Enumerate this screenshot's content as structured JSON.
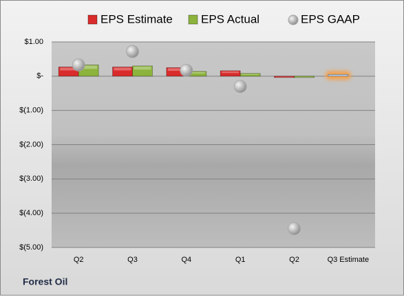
{
  "chart_data": {
    "type": "bar",
    "categories": [
      "Q2",
      "Q3",
      "Q4",
      "Q1",
      "Q2",
      "Q3 Estimate"
    ],
    "series": [
      {
        "name": "EPS Estimate",
        "color": "#d92b2b",
        "colors": [
          "#d92b2b",
          "#d92b2b",
          "#d92b2b",
          "#d92b2b",
          "#d92b2b",
          "#a9c9ec"
        ],
        "values": [
          0.27,
          0.27,
          0.25,
          0.16,
          -0.02,
          0.05
        ]
      },
      {
        "name": "EPS Actual",
        "color": "#8cb33c",
        "values": [
          0.33,
          0.3,
          0.14,
          0.08,
          -0.03,
          null
        ]
      },
      {
        "name": "EPS GAAP",
        "color": "#a6a6a6",
        "marker": "circle",
        "values": [
          0.33,
          0.72,
          0.17,
          -0.3,
          -4.45,
          null
        ]
      }
    ],
    "ylim": [
      -5,
      1
    ],
    "yticks": [
      {
        "value": 1,
        "label": "$1.00"
      },
      {
        "value": 0,
        "label": "$-"
      },
      {
        "value": -1,
        "label": "$(1.00)"
      },
      {
        "value": -2,
        "label": "$(2.00)"
      },
      {
        "value": -3,
        "label": "$(3.00)"
      },
      {
        "value": -4,
        "label": "$(4.00)"
      },
      {
        "value": -5,
        "label": "$(5.00)"
      }
    ],
    "grid": true,
    "legend": "top",
    "footer": "Forest Oil"
  }
}
